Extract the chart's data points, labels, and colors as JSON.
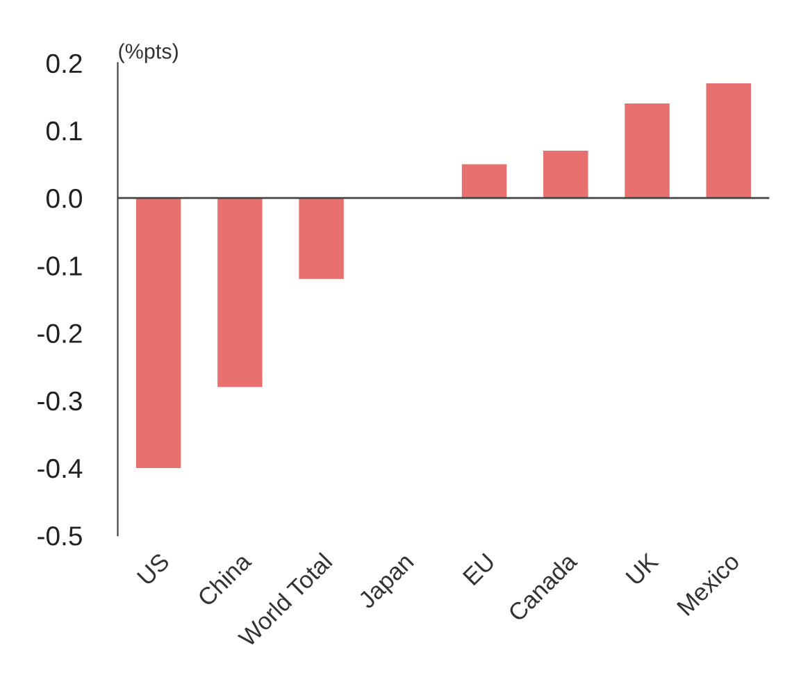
{
  "chart_data": {
    "type": "bar",
    "ylabel": "(%pts)",
    "categories": [
      "US",
      "China",
      "World Total",
      "Japan",
      "EU",
      "Canada",
      "UK",
      "Mexico"
    ],
    "values": [
      -0.4,
      -0.28,
      -0.12,
      0.0,
      0.05,
      0.07,
      0.14,
      0.17
    ],
    "color": "#e8706e",
    "ylim": [
      -0.5,
      0.2
    ],
    "yticks": [
      {
        "value": -0.5,
        "label": "-0.5"
      },
      {
        "value": -0.4,
        "label": "-0.4"
      },
      {
        "value": -0.3,
        "label": "-0.3"
      },
      {
        "value": -0.2,
        "label": "-0.2"
      },
      {
        "value": -0.1,
        "label": "-0.1"
      },
      {
        "value": 0.0,
        "label": "0.0"
      },
      {
        "value": 0.1,
        "label": "0.1"
      },
      {
        "value": 0.2,
        "label": "0.2"
      }
    ],
    "ref_lines": [
      {
        "axis": "y",
        "value": 0,
        "color": "#444444",
        "line_style": "solid"
      }
    ],
    "legend": false
  }
}
